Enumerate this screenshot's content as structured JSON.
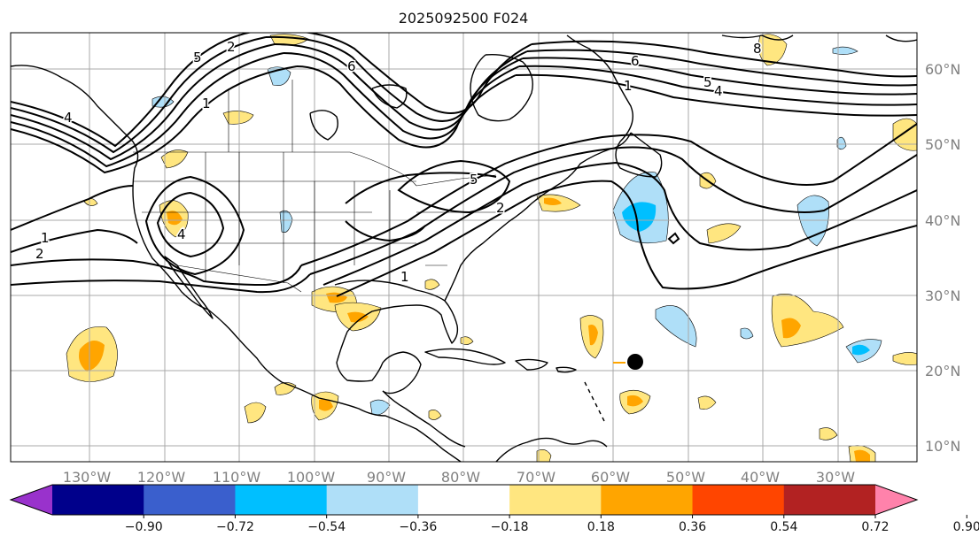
{
  "title": "2025092500 F024",
  "longitude_labels": [
    "130°W",
    "120°W",
    "110°W",
    "100°W",
    "90°W",
    "80°W",
    "70°W",
    "60°W",
    "50°W",
    "40°W",
    "30°W"
  ],
  "latitude_labels": [
    "60°N",
    "50°N",
    "40°N",
    "30°N",
    "20°N",
    "10°N"
  ],
  "colorbar": {
    "colors": [
      "#9932cc",
      "#00008b",
      "#3a5fcd",
      "#00bfff",
      "#afdff8",
      "#ffffff",
      "#ffe680",
      "#ffa500",
      "#ff4500",
      "#b22222",
      "#ff82ab"
    ],
    "tick_labels": [
      "−0.90",
      "−0.72",
      "−0.54",
      "−0.36",
      "−0.18",
      "0.18",
      "0.36",
      "0.54",
      "0.72",
      "0.90"
    ]
  },
  "contour_labels": [
    "5",
    "2",
    "6",
    "4",
    "1",
    "5",
    "1",
    "4",
    "6",
    "8",
    "1",
    "2",
    "5",
    "1",
    "4",
    "2"
  ],
  "storm_marker": "filled-circle"
}
